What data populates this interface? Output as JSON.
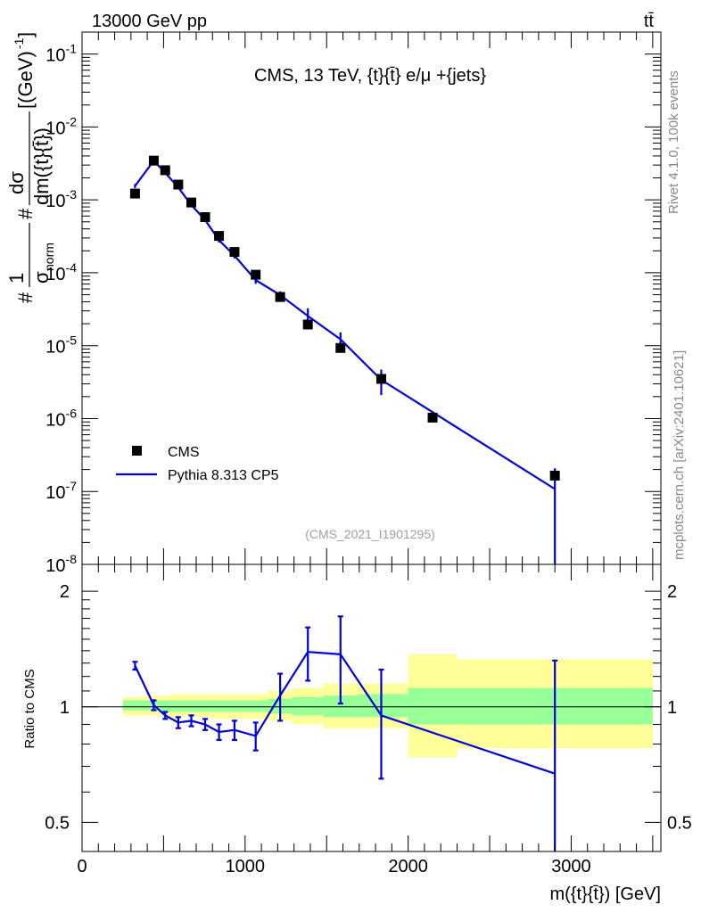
{
  "header": {
    "left": "13000 GeV pp",
    "right": "tt̄"
  },
  "side_labels": {
    "rivet": "Rivet 4.1.0,  100k events",
    "mcplots": "mcplots.cern.ch [arXiv:2401.10621]"
  },
  "chart_data": [
    {
      "type": "line",
      "panel": "main",
      "title": "CMS, 13 TeV, {t}{t̄} e/μ +{jets}",
      "analysis_tag": "(CMS_2021_I1901295)",
      "xlabel": "m({t}{t̄}) [GeV]",
      "ylabel": "#1/σnorm #dσ/dm({t}{t̄}) [(GeV)^-1]",
      "yscale": "log",
      "xlim": [
        0,
        3550
      ],
      "ylim": [
        1e-08,
        0.2
      ],
      "ytick_labels": [
        "10^-8",
        "10^-7",
        "10^-6",
        "10^-5",
        "10^-4",
        "10^-3",
        "10^-2",
        "10^-1"
      ],
      "legend": {
        "position": "bottom-left",
        "entries": [
          "CMS",
          "Pythia 8.313 CP5"
        ]
      },
      "series": [
        {
          "name": "CMS",
          "style": "markers",
          "color": "#000000",
          "x": [
            325,
            440,
            510,
            590,
            670,
            755,
            840,
            935,
            1065,
            1215,
            1385,
            1585,
            1835,
            2150,
            2900
          ],
          "y": [
            0.00122,
            0.00345,
            0.00255,
            0.00162,
            0.00092,
            0.00058,
            0.00032,
            0.000193,
            9.4e-05,
            4.65e-05,
            1.95e-05,
            9.3e-06,
            3.5e-06,
            1.03e-06,
            1.65e-07
          ]
        },
        {
          "name": "Pythia 8.313 CP5",
          "style": "line",
          "color": "#0000dd",
          "x": [
            325,
            440,
            510,
            590,
            670,
            755,
            840,
            935,
            1065,
            1215,
            1385,
            1585,
            1835,
            2900
          ],
          "y": [
            0.00155,
            0.00345,
            0.00235,
            0.00148,
            0.00085,
            0.00053,
            0.00028,
            0.000172,
            7.95e-05,
            4.95e-05,
            2.55e-05,
            1.22e-05,
            3.4e-06,
            1.08e-07
          ],
          "yerr": [
            0.0001,
            0.00015,
            0.0001,
            7e-05,
            4e-05,
            3e-05,
            2e-05,
            1.5e-05,
            9e-06,
            6e-06,
            7e-06,
            3e-06,
            1.3e-06,
            1e-07
          ]
        }
      ]
    },
    {
      "type": "line",
      "panel": "ratio",
      "ylabel": "Ratio to CMS",
      "xlabel": "m({t}{t̄}) [GeV]",
      "xlim": [
        0,
        3550
      ],
      "ylim": [
        0.42,
        2.35
      ],
      "xtick_labels": [
        "0",
        "1000",
        "2000",
        "3000"
      ],
      "ytick_labels": [
        "0.5",
        "1",
        "2"
      ],
      "bands": {
        "bin_edges": [
          250,
          380,
          470,
          550,
          630,
          710,
          800,
          880,
          990,
          1140,
          1290,
          1480,
          1690,
          2000,
          2300,
          3500
        ],
        "inner": {
          "color": "#99ff99",
          "low": [
            0.98,
            0.98,
            0.97,
            0.97,
            0.97,
            0.97,
            0.97,
            0.97,
            0.97,
            0.96,
            0.95,
            0.94,
            0.94,
            0.9,
            0.9
          ],
          "high": [
            1.04,
            1.04,
            1.04,
            1.04,
            1.04,
            1.04,
            1.04,
            1.04,
            1.04,
            1.05,
            1.06,
            1.07,
            1.08,
            1.12,
            1.12
          ]
        },
        "outer": {
          "color": "#ffff99",
          "low": [
            0.95,
            0.95,
            0.94,
            0.94,
            0.94,
            0.94,
            0.93,
            0.93,
            0.93,
            0.92,
            0.9,
            0.88,
            0.88,
            0.74,
            0.78
          ],
          "high": [
            1.06,
            1.07,
            1.07,
            1.08,
            1.08,
            1.08,
            1.08,
            1.08,
            1.08,
            1.1,
            1.12,
            1.15,
            1.15,
            1.37,
            1.33
          ]
        }
      },
      "series": [
        {
          "name": "Pythia 8.313 CP5 / CMS",
          "color": "#0000dd",
          "x": [
            325,
            440,
            510,
            590,
            670,
            755,
            840,
            935,
            1065,
            1215,
            1385,
            1585,
            1835,
            2900
          ],
          "y": [
            1.28,
            1.01,
            0.95,
            0.91,
            0.92,
            0.9,
            0.86,
            0.87,
            0.84,
            1.07,
            1.39,
            1.37,
            0.95,
            0.67
          ],
          "yerr": [
            0.03,
            0.03,
            0.02,
            0.03,
            0.03,
            0.03,
            0.04,
            0.05,
            0.07,
            0.15,
            0.22,
            0.35,
            0.3,
            0.65
          ]
        }
      ]
    }
  ]
}
